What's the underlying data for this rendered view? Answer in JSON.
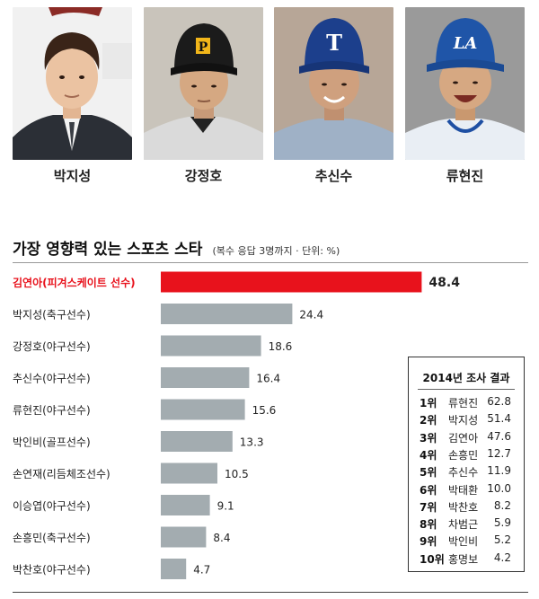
{
  "photos": [
    {
      "name": "박지성"
    },
    {
      "name": "강정호"
    },
    {
      "name": "추신수"
    },
    {
      "name": "류현진"
    }
  ],
  "colors": {
    "highlight": "#e8121c",
    "bar": "#a3acb0"
  },
  "chart_data": {
    "type": "bar",
    "orientation": "horizontal",
    "title": "가장 영향력 있는 스포츠 스타",
    "subtitle": "(복수 응답 3명까지 · 단위: %)",
    "categories": [
      "김연아(피겨스케이트 선수)",
      "박지성(축구선수)",
      "강정호(야구선수)",
      "추신수(야구선수)",
      "류현진(야구선수)",
      "박인비(골프선수)",
      "손연재(리듬체조선수)",
      "이승엽(야구선수)",
      "손흥민(축구선수)",
      "박찬호(야구선수)"
    ],
    "values": [
      48.4,
      24.4,
      18.6,
      16.4,
      15.6,
      13.3,
      10.5,
      9.1,
      8.4,
      4.7
    ],
    "highlight_index": 0
  },
  "box": {
    "title": "2014년 조사 결과",
    "rows": [
      {
        "rank": "1위",
        "name": "류현진",
        "value": "62.8"
      },
      {
        "rank": "2위",
        "name": "박지성",
        "value": "51.4"
      },
      {
        "rank": "3위",
        "name": "김연아",
        "value": "47.6"
      },
      {
        "rank": "4위",
        "name": "손흥민",
        "value": "12.7"
      },
      {
        "rank": "5위",
        "name": "추신수",
        "value": "11.9"
      },
      {
        "rank": "6위",
        "name": "박태환",
        "value": "10.0"
      },
      {
        "rank": "7위",
        "name": "박찬호",
        "value": "8.2"
      },
      {
        "rank": "8위",
        "name": "차범근",
        "value": "5.9"
      },
      {
        "rank": "9위",
        "name": "박인비",
        "value": "5.2"
      },
      {
        "rank": "10위",
        "name": "홍명보",
        "value": "4.2"
      }
    ]
  }
}
